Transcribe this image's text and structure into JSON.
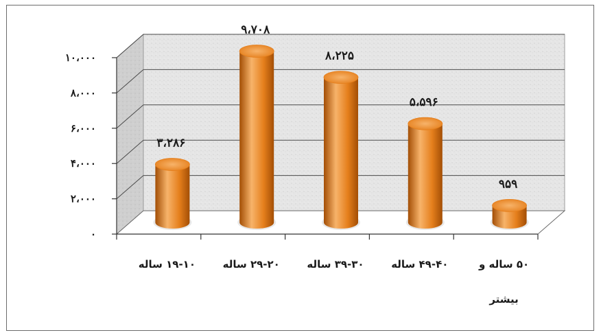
{
  "chart_data": {
    "type": "bar",
    "style": "3d-cylinder",
    "categories": [
      "۱۹-۱۰ ساله",
      "۲۹-۲۰ ساله",
      "۳۹-۳۰ ساله",
      "۴۹-۴۰ ساله",
      "۵۰ ساله و بیشتر"
    ],
    "category_lines": [
      [
        "۱۹-۱۰ ساله"
      ],
      [
        "۲۹-۲۰ ساله"
      ],
      [
        "۳۹-۳۰ ساله"
      ],
      [
        "۴۹-۴۰ ساله"
      ],
      [
        "۵۰ ساله و",
        "بیشتر"
      ]
    ],
    "values": [
      3286,
      9708,
      8225,
      5596,
      959
    ],
    "value_labels": [
      "۳،۲۸۶",
      "۹،۷۰۸",
      "۸،۲۲۵",
      "۵،۵۹۶",
      "۹۵۹"
    ],
    "yticks": [
      0,
      2000,
      4000,
      6000,
      8000,
      10000
    ],
    "ytick_labels": [
      "۰",
      "۲،۰۰۰",
      "۴،۰۰۰",
      "۶،۰۰۰",
      "۸،۰۰۰",
      "۱۰،۰۰۰"
    ],
    "ylim": [
      0,
      10000
    ],
    "grid": true,
    "title": "",
    "xlabel": "",
    "ylabel": "",
    "colors": {
      "bar_light": "#f7b36a",
      "bar_mid": "#e57f1c",
      "bar_dark": "#a34e05",
      "wall": "#e4e4e4",
      "floor": "#ffffff",
      "gridline": "#4a4a4a"
    }
  }
}
